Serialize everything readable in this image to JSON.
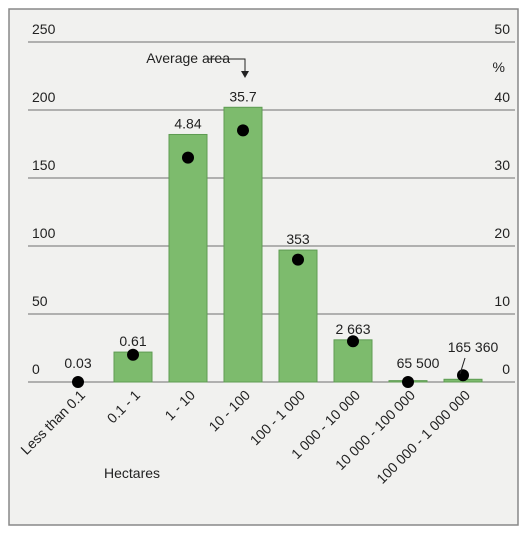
{
  "chart_data": {
    "type": "bar",
    "categories": [
      "Less than 0.1",
      "0.1 - 1",
      "1 - 10",
      "10 - 100",
      "100 - 1 000",
      "1 000 - 10 000",
      "10 000 - 100 000",
      "100 000 - 1 000 000"
    ],
    "series": [
      {
        "color": "#7dbb6d",
        "values": [
          0,
          22,
          182,
          202,
          97,
          31,
          1,
          2
        ]
      },
      {
        "type": "scatter",
        "axis": "y2",
        "color": "#000000",
        "values": [
          0,
          4,
          33,
          37,
          18,
          6,
          0,
          1
        ]
      }
    ],
    "bar_labels": [
      "0.03",
      "0.61",
      "4.84",
      "35.7",
      "353",
      "2 663",
      "65 500",
      "165 360"
    ],
    "annotation": "Average area",
    "xlabel": "Hectares",
    "y2label": "%",
    "ylim": [
      0,
      250
    ],
    "yticks": [
      0,
      50,
      100,
      150,
      200,
      250
    ],
    "y2lim": [
      0,
      50
    ],
    "y2ticks": [
      0,
      10,
      20,
      30,
      40,
      50
    ],
    "grid": true
  }
}
